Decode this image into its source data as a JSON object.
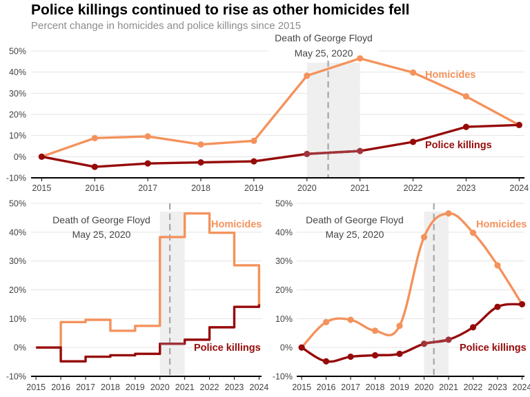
{
  "title": "Police killings continued to rise as other homicides fell",
  "subtitle": "Percent change in homicides and police killings since 2015",
  "colors": {
    "homicides": "#f4925c",
    "police": "#960a0a",
    "police_band": "#a0343a",
    "band": "#efefef",
    "vline": "#a6a6a6",
    "grid": "#e3e3e3",
    "axis": "#000000"
  },
  "annotation": {
    "line1": "Death of George Floyd",
    "line2": "May 25, 2020"
  },
  "chart_data": [
    {
      "type": "line",
      "style": "straight",
      "x": [
        2015,
        2016,
        2017,
        2018,
        2019,
        2020,
        2021,
        2022,
        2023,
        2024
      ],
      "xlim": [
        2014.8,
        2024.1
      ],
      "ylim": [
        -10,
        50
      ],
      "yticks": [
        -10,
        0,
        10,
        20,
        30,
        40,
        50
      ],
      "ytick_labels": [
        "-10%",
        "0%",
        "10%",
        "20%",
        "30%",
        "40%",
        "50%"
      ],
      "grid": true,
      "highlight": {
        "start": 2020,
        "end": 2021,
        "event": 2020.4
      },
      "series": [
        {
          "name": "Homicides",
          "values": [
            0,
            8.8,
            9.6,
            5.8,
            7.5,
            38.3,
            46.5,
            39.8,
            28.5,
            15
          ]
        },
        {
          "name": "Police killings",
          "values": [
            0,
            -4.8,
            -3.2,
            -2.7,
            -2.2,
            1.3,
            2.7,
            7,
            14.1,
            15
          ]
        }
      ]
    },
    {
      "type": "line",
      "style": "step",
      "x": [
        2015,
        2016,
        2017,
        2018,
        2019,
        2020,
        2021,
        2022,
        2023,
        2024
      ],
      "xlim": [
        2014.8,
        2024.1
      ],
      "ylim": [
        -10,
        50
      ],
      "yticks": [
        -10,
        0,
        10,
        20,
        30,
        40,
        50
      ],
      "ytick_labels": [
        "-10%",
        "0%",
        "10%",
        "20%",
        "30%",
        "40%",
        "50%"
      ],
      "grid": true,
      "highlight": {
        "start": 2020,
        "end": 2021,
        "event": 2020.4
      },
      "series": [
        {
          "name": "Homicides",
          "values": [
            0,
            8.8,
            9.6,
            5.8,
            7.5,
            38.3,
            46.5,
            39.8,
            28.5,
            15
          ]
        },
        {
          "name": "Police killings",
          "values": [
            0,
            -4.8,
            -3.2,
            -2.7,
            -2.2,
            1.3,
            2.7,
            7,
            14.1,
            15
          ]
        }
      ]
    },
    {
      "type": "line",
      "style": "smooth",
      "x": [
        2015,
        2016,
        2017,
        2018,
        2019,
        2020,
        2021,
        2022,
        2023,
        2024
      ],
      "xlim": [
        2014.8,
        2024.1
      ],
      "ylim": [
        -10,
        50
      ],
      "yticks": [
        -10,
        0,
        10,
        20,
        30,
        40,
        50
      ],
      "ytick_labels": [
        "-10%",
        "0%",
        "10%",
        "20%",
        "30%",
        "40%",
        "50%"
      ],
      "grid": true,
      "highlight": {
        "start": 2020,
        "end": 2021,
        "event": 2020.4
      },
      "series": [
        {
          "name": "Homicides",
          "values": [
            0,
            8.8,
            9.6,
            5.8,
            7.5,
            38.3,
            46.5,
            39.8,
            28.5,
            15
          ]
        },
        {
          "name": "Police killings",
          "values": [
            0,
            -4.8,
            -3.2,
            -2.7,
            -2.2,
            1.3,
            2.7,
            7,
            14.1,
            15
          ]
        }
      ]
    }
  ]
}
